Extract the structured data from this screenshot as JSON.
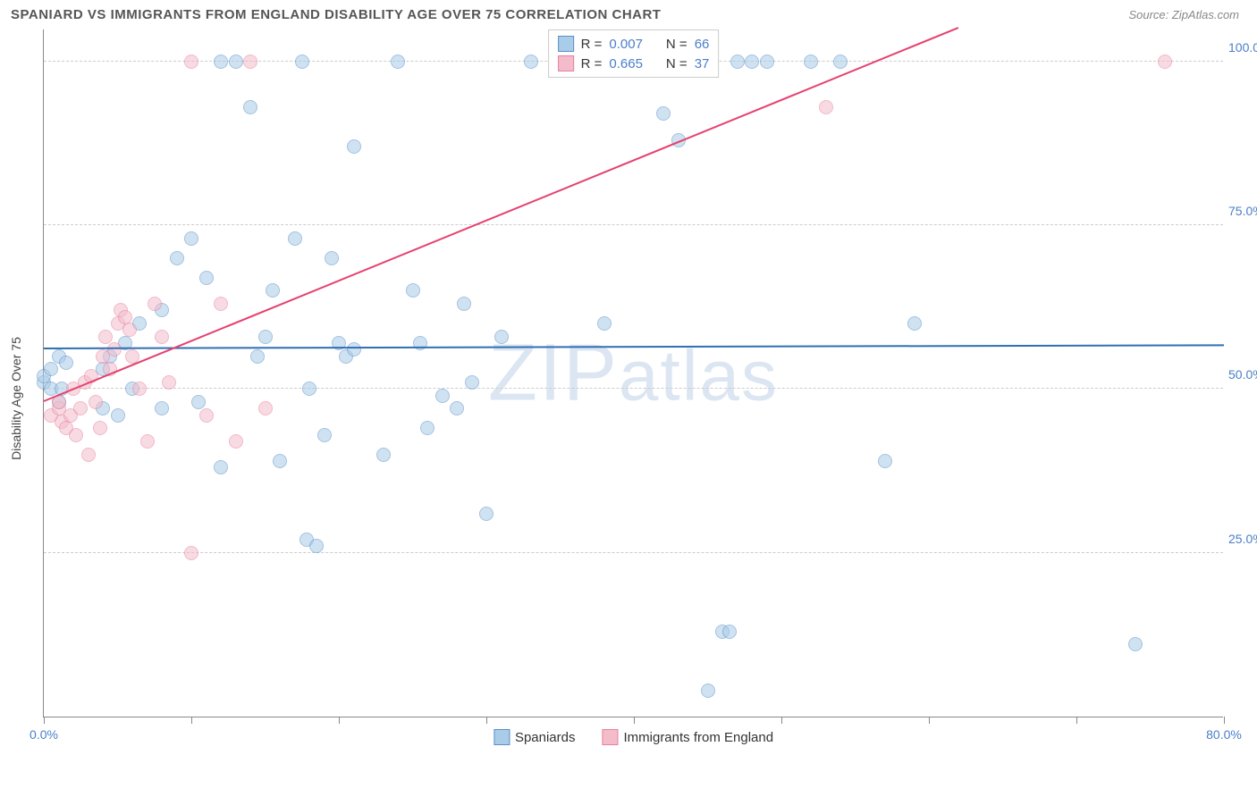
{
  "title": "SPANIARD VS IMMIGRANTS FROM ENGLAND DISABILITY AGE OVER 75 CORRELATION CHART",
  "source": "Source: ZipAtlas.com",
  "ylabel": "Disability Age Over 75",
  "watermark": "ZIPatlas",
  "chart": {
    "type": "scatter",
    "xlim": [
      0,
      80
    ],
    "ylim": [
      0,
      105
    ],
    "xtick_positions": [
      0,
      10,
      20,
      30,
      40,
      50,
      60,
      70,
      80
    ],
    "xtick_labels_shown": {
      "0": "0.0%",
      "80": "80.0%"
    },
    "ytick_positions": [
      25,
      50,
      75,
      100
    ],
    "ytick_labels": [
      "25.0%",
      "50.0%",
      "75.0%",
      "100.0%"
    ],
    "grid_color": "#cccccc",
    "background_color": "#ffffff",
    "point_radius": 8,
    "point_opacity": 0.55,
    "series": [
      {
        "name": "Spaniards",
        "fill": "#a9cce8",
        "stroke": "#5b8fc7",
        "trend_color": "#2f6fb3",
        "R": "0.007",
        "N": "66",
        "trend": {
          "x1": 0,
          "y1": 56.0,
          "x2": 80,
          "y2": 56.5
        },
        "points": [
          [
            0,
            51
          ],
          [
            0,
            52
          ],
          [
            0.5,
            50
          ],
          [
            0.5,
            53
          ],
          [
            1,
            48
          ],
          [
            1,
            55
          ],
          [
            1.2,
            50
          ],
          [
            1.5,
            54
          ],
          [
            4,
            47
          ],
          [
            4,
            53
          ],
          [
            4.5,
            55
          ],
          [
            5,
            46
          ],
          [
            5.5,
            57
          ],
          [
            6,
            50
          ],
          [
            6.5,
            60
          ],
          [
            8,
            47
          ],
          [
            8,
            62
          ],
          [
            9,
            70
          ],
          [
            10,
            73
          ],
          [
            10.5,
            48
          ],
          [
            11,
            67
          ],
          [
            12,
            38
          ],
          [
            12,
            100
          ],
          [
            13,
            100
          ],
          [
            14,
            93
          ],
          [
            14.5,
            55
          ],
          [
            15,
            58
          ],
          [
            15.5,
            65
          ],
          [
            16,
            39
          ],
          [
            17,
            73
          ],
          [
            17.5,
            100
          ],
          [
            17.8,
            27
          ],
          [
            18,
            50
          ],
          [
            18.5,
            26
          ],
          [
            19,
            43
          ],
          [
            19.5,
            70
          ],
          [
            20,
            57
          ],
          [
            20.5,
            55
          ],
          [
            21,
            56
          ],
          [
            21,
            87
          ],
          [
            23,
            40
          ],
          [
            24,
            100
          ],
          [
            25,
            65
          ],
          [
            25.5,
            57
          ],
          [
            26,
            44
          ],
          [
            27,
            49
          ],
          [
            28,
            47
          ],
          [
            28.5,
            63
          ],
          [
            29,
            51
          ],
          [
            30,
            31
          ],
          [
            31,
            58
          ],
          [
            33,
            100
          ],
          [
            38,
            60
          ],
          [
            42,
            92
          ],
          [
            43,
            88
          ],
          [
            45,
            4
          ],
          [
            46,
            13
          ],
          [
            46.5,
            13
          ],
          [
            47,
            100
          ],
          [
            48,
            100
          ],
          [
            49,
            100
          ],
          [
            52,
            100
          ],
          [
            54,
            100
          ],
          [
            57,
            39
          ],
          [
            59,
            60
          ],
          [
            74,
            11
          ]
        ]
      },
      {
        "name": "Immigrants from England",
        "fill": "#f4bccb",
        "stroke": "#e87f9e",
        "trend_color": "#e6416e",
        "R": "0.665",
        "N": "37",
        "trend": {
          "x1": 0,
          "y1": 48,
          "x2": 62,
          "y2": 105
        },
        "points": [
          [
            0.5,
            46
          ],
          [
            1,
            47
          ],
          [
            1,
            48
          ],
          [
            1.2,
            45
          ],
          [
            1.5,
            44
          ],
          [
            1.8,
            46
          ],
          [
            2,
            50
          ],
          [
            2.2,
            43
          ],
          [
            2.5,
            47
          ],
          [
            2.8,
            51
          ],
          [
            3,
            40
          ],
          [
            3.2,
            52
          ],
          [
            3.5,
            48
          ],
          [
            3.8,
            44
          ],
          [
            4,
            55
          ],
          [
            4.2,
            58
          ],
          [
            4.5,
            53
          ],
          [
            4.8,
            56
          ],
          [
            5,
            60
          ],
          [
            5.2,
            62
          ],
          [
            5.5,
            61
          ],
          [
            5.8,
            59
          ],
          [
            6,
            55
          ],
          [
            6.5,
            50
          ],
          [
            7,
            42
          ],
          [
            7.5,
            63
          ],
          [
            8,
            58
          ],
          [
            8.5,
            51
          ],
          [
            10,
            100
          ],
          [
            10,
            25
          ],
          [
            11,
            46
          ],
          [
            12,
            63
          ],
          [
            13,
            42
          ],
          [
            14,
            100
          ],
          [
            15,
            47
          ],
          [
            53,
            93
          ],
          [
            76,
            100
          ]
        ]
      }
    ]
  },
  "legend_top": {
    "rows": [
      {
        "series": 0,
        "r_label": "R =",
        "n_label": "N ="
      },
      {
        "series": 1,
        "r_label": "R =",
        "n_label": "N ="
      }
    ]
  },
  "legend_bottom": [
    {
      "series": 0
    },
    {
      "series": 1
    }
  ]
}
